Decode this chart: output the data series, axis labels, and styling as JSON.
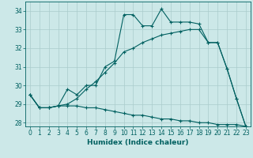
{
  "xlabel": "Humidex (Indice chaleur)",
  "bg_color": "#cce8e8",
  "line_color": "#006060",
  "grid_color": "#aacccc",
  "xlim": [
    -0.5,
    23.5
  ],
  "ylim": [
    27.8,
    34.5
  ],
  "yticks": [
    28,
    29,
    30,
    31,
    32,
    33,
    34
  ],
  "xticks": [
    0,
    1,
    2,
    3,
    4,
    5,
    6,
    7,
    8,
    9,
    10,
    11,
    12,
    13,
    14,
    15,
    16,
    17,
    18,
    19,
    20,
    21,
    22,
    23
  ],
  "line1_x": [
    0,
    1,
    2,
    3,
    4,
    5,
    6,
    7,
    8,
    9,
    10,
    11,
    12,
    13,
    14,
    15,
    16,
    17,
    18,
    19,
    20,
    21,
    22,
    23
  ],
  "line1_y": [
    29.5,
    28.8,
    28.8,
    28.9,
    29.8,
    29.5,
    30.0,
    30.0,
    31.0,
    31.3,
    33.8,
    33.8,
    33.2,
    33.2,
    34.1,
    33.4,
    33.4,
    33.4,
    33.3,
    32.3,
    32.3,
    30.9,
    29.3,
    27.8
  ],
  "line2_x": [
    0,
    1,
    2,
    3,
    4,
    5,
    6,
    7,
    8,
    9,
    10,
    11,
    12,
    13,
    14,
    15,
    16,
    17,
    18,
    19,
    20,
    21,
    22,
    23
  ],
  "line2_y": [
    29.5,
    28.8,
    28.8,
    28.9,
    29.0,
    29.3,
    29.8,
    30.2,
    30.7,
    31.2,
    31.8,
    32.0,
    32.3,
    32.5,
    32.7,
    32.8,
    32.9,
    33.0,
    33.0,
    32.3,
    32.3,
    30.9,
    29.3,
    27.8
  ],
  "line3_x": [
    0,
    1,
    2,
    3,
    4,
    5,
    6,
    7,
    8,
    9,
    10,
    11,
    12,
    13,
    14,
    15,
    16,
    17,
    18,
    19,
    20,
    21,
    22,
    23
  ],
  "line3_y": [
    29.5,
    28.8,
    28.8,
    28.9,
    28.9,
    28.9,
    28.8,
    28.8,
    28.7,
    28.6,
    28.5,
    28.4,
    28.4,
    28.3,
    28.2,
    28.2,
    28.1,
    28.1,
    28.0,
    28.0,
    27.9,
    27.9,
    27.9,
    27.8
  ],
  "label_fontsize": 6.5,
  "tick_fontsize": 5.5
}
